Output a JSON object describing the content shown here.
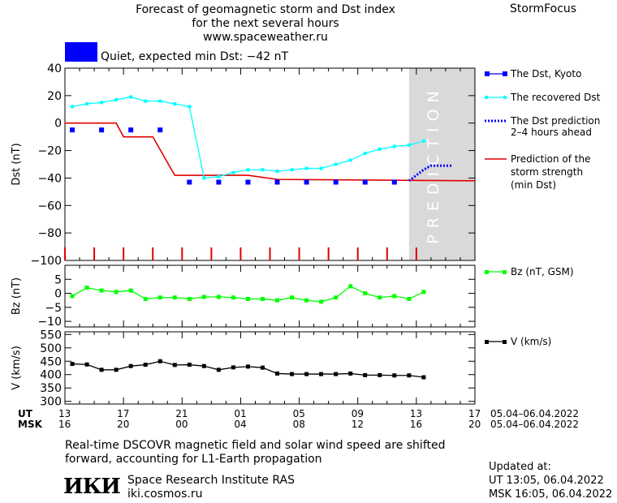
{
  "header": {
    "title_line1": "Forecast of geomagnetic storm and Dst index",
    "title_line2": "for the next several hours",
    "title_line3": "www.spaceweather.ru",
    "brand": "StormFocus"
  },
  "status": {
    "text": "Quiet, expected min Dst: −42 nT",
    "color": "#0000ff"
  },
  "colors": {
    "dst_kyoto": "#0000ff",
    "recovered": "#00ffff",
    "prediction_line": "#0000ff",
    "storm": "#e00000",
    "bz": "#00ff00",
    "v": "#000000",
    "forecast_zone": "#d9d9d9"
  },
  "forecast_zone_label": "PREDICTION",
  "legend": {
    "dst_kyoto": "The Dst, Kyoto",
    "recovered": "The recovered Dst",
    "prediction_1": "The Dst prediction",
    "prediction_2": "2–4 hours ahead",
    "storm_1": "Prediction of the",
    "storm_2": "storm strength",
    "storm_3": "(min Dst)",
    "bz": "Bz (nT, GSM)",
    "v": "V (km/s)"
  },
  "time_axis": {
    "ut_label": "UT",
    "msk_label": "MSK",
    "ut_ticks": [
      "13",
      "17",
      "21",
      "01",
      "05",
      "09",
      "13",
      "17"
    ],
    "msk_ticks": [
      "16",
      "20",
      "00",
      "04",
      "08",
      "12",
      "16",
      "20"
    ],
    "ut_range": "05.04–06.04.2022",
    "msk_range": "05.04–06.04.2022"
  },
  "chart_data": [
    {
      "type": "line",
      "ylabel": "Dst (nT)",
      "xlim": [
        0,
        28
      ],
      "ylim": [
        -100,
        40
      ],
      "yticks": [
        40,
        20,
        0,
        -20,
        -40,
        -60,
        -80,
        -100
      ],
      "forecast_start": 23.5,
      "series": [
        {
          "name": "The Dst, Kyoto",
          "type": "scatter",
          "x": [
            0.5,
            2.5,
            4.5,
            6.5,
            8.5,
            10.5,
            12.5,
            14.5,
            16.5,
            18.5,
            20.5,
            22.5
          ],
          "y": [
            -5,
            -5,
            -5,
            -5,
            -43,
            -43,
            -43,
            -43,
            -43,
            -43,
            -43,
            -43
          ]
        },
        {
          "name": "The recovered Dst",
          "type": "line",
          "x": [
            0.5,
            1.5,
            2.5,
            3.5,
            4.5,
            5.5,
            6.5,
            7.5,
            8.5,
            9.5,
            10.5,
            11.5,
            12.5,
            13.5,
            14.5,
            15.5,
            16.5,
            17.5,
            18.5,
            19.5,
            20.5,
            21.5,
            22.5,
            23.5,
            24.5
          ],
          "y": [
            12,
            14,
            15,
            17,
            19,
            16,
            16,
            14,
            12,
            -40,
            -39,
            -36,
            -34,
            -34,
            -35,
            -34,
            -33,
            -33,
            -30,
            -27,
            -22,
            -19,
            -17,
            -16,
            -13
          ]
        },
        {
          "name": "The Dst prediction 2–4 hours ahead",
          "type": "line",
          "x": [
            23.5,
            24.0,
            24.5,
            25.0,
            25.5,
            26.0,
            26.5
          ],
          "y": [
            -42,
            -38,
            -34,
            -31,
            -31,
            -31,
            -31
          ]
        },
        {
          "name": "Prediction of the storm strength (min Dst)",
          "type": "step",
          "x": [
            0,
            3.5,
            4.0,
            6.0,
            7.5,
            12.5,
            14.5,
            28
          ],
          "y": [
            0,
            0,
            -10,
            -10,
            -38,
            -38,
            -41,
            -42
          ]
        }
      ],
      "ticks_marks_x": [
        0,
        2,
        4,
        6,
        8,
        10,
        12,
        14,
        16,
        18,
        20,
        22,
        24
      ]
    },
    {
      "type": "line",
      "ylabel": "Bz (nT)",
      "ylim": [
        -12,
        10
      ],
      "yticks": [
        5,
        0,
        -5,
        -10
      ],
      "series": [
        {
          "name": "Bz (nT, GSM)",
          "x": [
            0.5,
            1.5,
            2.5,
            3.5,
            4.5,
            5.5,
            6.5,
            7.5,
            8.5,
            9.5,
            10.5,
            11.5,
            12.5,
            13.5,
            14.5,
            15.5,
            16.5,
            17.5,
            18.5,
            19.5,
            20.5,
            21.5,
            22.5,
            23.5,
            24.5
          ],
          "y": [
            -1,
            2,
            1,
            0.5,
            1,
            -2,
            -1.5,
            -1.5,
            -2,
            -1.3,
            -1.3,
            -1.5,
            -2,
            -2,
            -2.5,
            -1.5,
            -2.5,
            -3,
            -1.5,
            2.5,
            0,
            -1.5,
            -1,
            -2,
            0.5
          ]
        }
      ]
    },
    {
      "type": "line",
      "ylabel": "V (km/s)",
      "ylim": [
        290,
        560
      ],
      "yticks": [
        550,
        500,
        450,
        400,
        350,
        300
      ],
      "series": [
        {
          "name": "V (km/s)",
          "x": [
            0.5,
            1.5,
            2.5,
            3.5,
            4.5,
            5.5,
            6.5,
            7.5,
            8.5,
            9.5,
            10.5,
            11.5,
            12.5,
            13.5,
            14.5,
            15.5,
            16.5,
            17.5,
            18.5,
            19.5,
            20.5,
            21.5,
            22.5,
            23.5,
            24.5
          ],
          "y": [
            440,
            438,
            418,
            418,
            432,
            437,
            450,
            436,
            437,
            432,
            418,
            427,
            430,
            426,
            404,
            402,
            402,
            402,
            402,
            404,
            398,
            398,
            397,
            397,
            390
          ]
        }
      ]
    }
  ],
  "footer": {
    "note_line1": "Real-time DSCOVR magnetic field and solar wind speed are shifted",
    "note_line2": "forward, accounting for L1-Earth propagation",
    "logo": "ИКИ",
    "org": "Space Research Institute RAS",
    "site": "iki.cosmos.ru",
    "updated_label": "Updated at:",
    "updated_ut": "UT   13:05, 06.04.2022",
    "updated_msk": "MSK 16:05, 06.04.2022"
  }
}
